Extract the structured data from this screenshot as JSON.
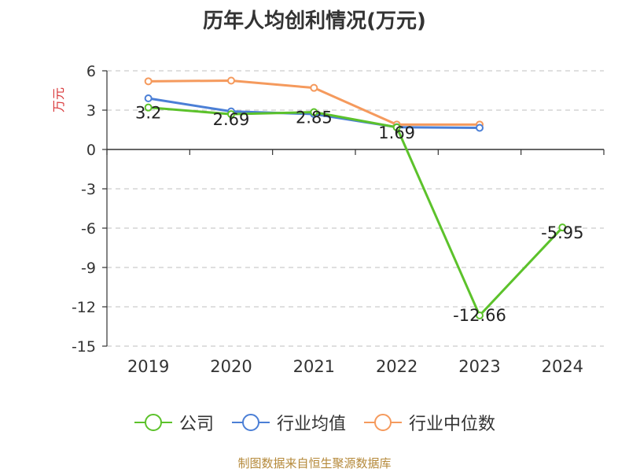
{
  "chart_data": {
    "type": "line",
    "title": "历年人均创利情况(万元)",
    "ylabel": "万元",
    "xlabel": "",
    "categories": [
      "2019",
      "2020",
      "2021",
      "2022",
      "2023",
      "2024"
    ],
    "ylim": [
      -15,
      6
    ],
    "yticks": [
      6,
      3,
      0,
      -3,
      -6,
      -9,
      -12,
      -15
    ],
    "grid": true,
    "legend_position": "bottom",
    "series": [
      {
        "name": "公司",
        "color": "#5cc22b",
        "values": [
          3.2,
          2.69,
          2.85,
          1.69,
          -12.66,
          -5.95
        ],
        "labels": [
          "3.2",
          "2.69",
          "2.85",
          "1.69",
          "-12.66",
          "-5.95"
        ]
      },
      {
        "name": "行业均值",
        "color": "#4b7fd6",
        "values": [
          3.9,
          2.9,
          2.7,
          1.7,
          1.65,
          null
        ],
        "labels": []
      },
      {
        "name": "行业中位数",
        "color": "#f59a5d",
        "values": [
          5.2,
          5.25,
          4.7,
          1.9,
          1.9,
          null
        ],
        "labels": []
      }
    ]
  },
  "source_note": "制图数据来自恒生聚源数据库"
}
